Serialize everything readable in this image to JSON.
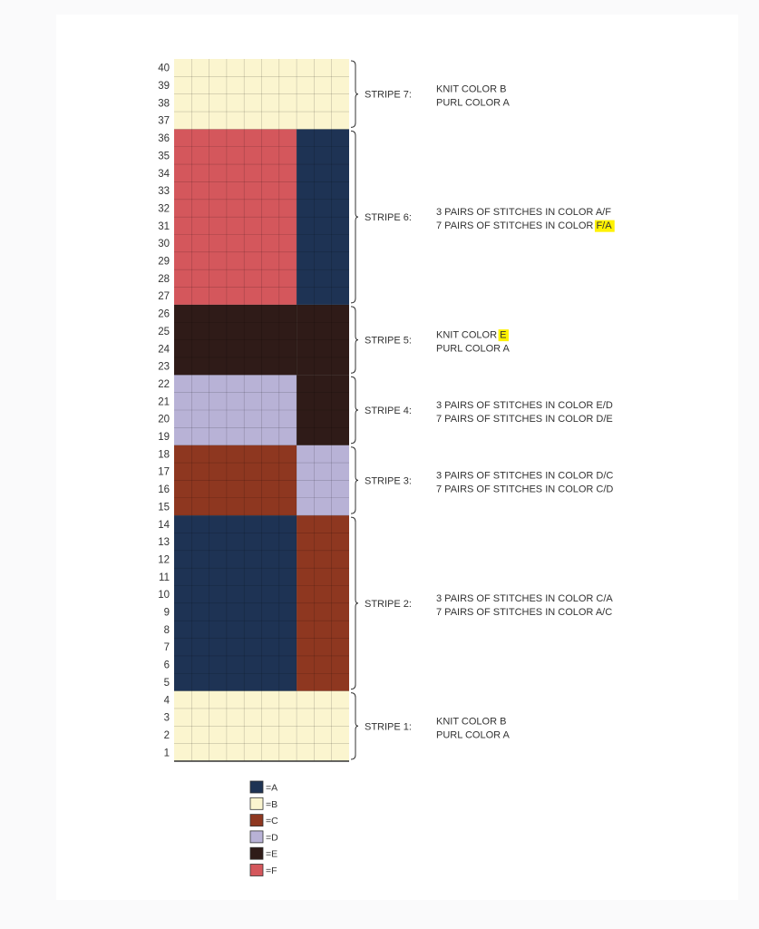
{
  "colors": {
    "A": "#1e3354",
    "B": "#fbf5cf",
    "C": "#8e3720",
    "D": "#b8b2d6",
    "E": "#2f1b18",
    "F": "#d4575c",
    "highlight": "#fff200"
  },
  "rows": [
    "1",
    "2",
    "3",
    "4",
    "5",
    "6",
    "7",
    "8",
    "9",
    "10",
    "11",
    "12",
    "13",
    "14",
    "15",
    "16",
    "17",
    "18",
    "19",
    "20",
    "21",
    "22",
    "23",
    "24",
    "25",
    "26",
    "27",
    "28",
    "29",
    "30",
    "31",
    "32",
    "33",
    "34",
    "35",
    "36",
    "37",
    "38",
    "39",
    "40"
  ],
  "stripes": [
    {
      "id": "stripe-1",
      "label": "STRIPE 1:",
      "rows": [
        1,
        4
      ],
      "left": "B",
      "right": "B",
      "lines": [
        {
          "text": "KNIT COLOR  B",
          "highlight": ""
        },
        {
          "text": "PURL COLOR A",
          "highlight": ""
        }
      ]
    },
    {
      "id": "stripe-2",
      "label": "STRIPE 2:",
      "rows": [
        5,
        14
      ],
      "left": "A",
      "right": "C",
      "lines": [
        {
          "text": "3 PAIRS OF STITCHES IN COLOR C/A",
          "highlight": ""
        },
        {
          "text": "7 PAIRS OF STITCHES IN COLOR A/C",
          "highlight": ""
        }
      ]
    },
    {
      "id": "stripe-3",
      "label": "STRIPE 3:",
      "rows": [
        15,
        18
      ],
      "left": "C",
      "right": "D",
      "lines": [
        {
          "text": "3 PAIRS OF STITCHES IN COLOR D/C",
          "highlight": ""
        },
        {
          "text": "7 PAIRS OF STITCHES IN COLOR C/D",
          "highlight": ""
        }
      ]
    },
    {
      "id": "stripe-4",
      "label": "STRIPE 4:",
      "rows": [
        19,
        22
      ],
      "left": "D",
      "right": "E",
      "lines": [
        {
          "text": "3 PAIRS OF STITCHES IN COLOR E/D",
          "highlight": ""
        },
        {
          "text": "7 PAIRS OF STITCHES IN COLOR D/E",
          "highlight": ""
        }
      ]
    },
    {
      "id": "stripe-5",
      "label": "STRIPE 5:",
      "rows": [
        23,
        26
      ],
      "left": "E",
      "right": "E",
      "lines": [
        {
          "text": "KNIT COLOR ",
          "highlight": "E"
        },
        {
          "text": "PURL COLOR A",
          "highlight": ""
        }
      ]
    },
    {
      "id": "stripe-6",
      "label": "STRIPE 6:",
      "rows": [
        27,
        36
      ],
      "left": "F",
      "right": "A",
      "lines": [
        {
          "text": "3 PAIRS OF STITCHES IN COLOR A/F",
          "highlight": ""
        },
        {
          "text": "7 PAIRS OF STITCHES IN COLOR ",
          "highlight": "F/A"
        }
      ]
    },
    {
      "id": "stripe-7",
      "label": "STRIPE 7:",
      "rows": [
        37,
        40
      ],
      "left": "B",
      "right": "B",
      "lines": [
        {
          "text": "KNIT COLOR B",
          "highlight": ""
        },
        {
          "text": "PURL COLOR A",
          "highlight": ""
        }
      ]
    }
  ],
  "legend": [
    {
      "key": "A",
      "label": "=A"
    },
    {
      "key": "B",
      "label": "=B"
    },
    {
      "key": "C",
      "label": "=C"
    },
    {
      "key": "D",
      "label": "=D"
    },
    {
      "key": "E",
      "label": "=E"
    },
    {
      "key": "F",
      "label": "=F"
    }
  ]
}
